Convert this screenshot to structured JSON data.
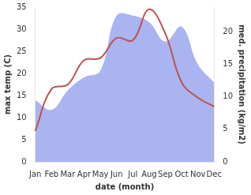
{
  "chart_data": {
    "type": "line",
    "categories": [
      "Jan",
      "Feb",
      "Mar",
      "Apr",
      "May",
      "Jun",
      "Jul",
      "Aug",
      "Sep",
      "Oct",
      "Nov",
      "Dec"
    ],
    "x_label": "date (month)",
    "y_label": "max temp (C)",
    "y2_label": "med. precipitation (kg/m2)",
    "ylim": [
      0,
      35
    ],
    "yticks": [
      0,
      5,
      10,
      15,
      20,
      25,
      30,
      35
    ],
    "y2lim": [
      0,
      23.8
    ],
    "y2ticks": [
      0,
      5,
      10,
      15,
      20
    ],
    "grid": false,
    "series": [
      {
        "name": "med. precipitation (kg/m2)",
        "type": "area",
        "axis": "y2",
        "color": "#aab4f0",
        "values": [
          9.5,
          8,
          11,
          13,
          14,
          22.5,
          22.5,
          21.5,
          18.5,
          20.8,
          15,
          12.2
        ]
      },
      {
        "name": "max temp (C)",
        "type": "line",
        "axis": "y",
        "color": "#c0504d",
        "values": [
          7,
          16.5,
          17.5,
          23,
          23.5,
          28,
          27.5,
          34.5,
          29,
          18,
          14.5,
          12.5
        ]
      }
    ]
  }
}
